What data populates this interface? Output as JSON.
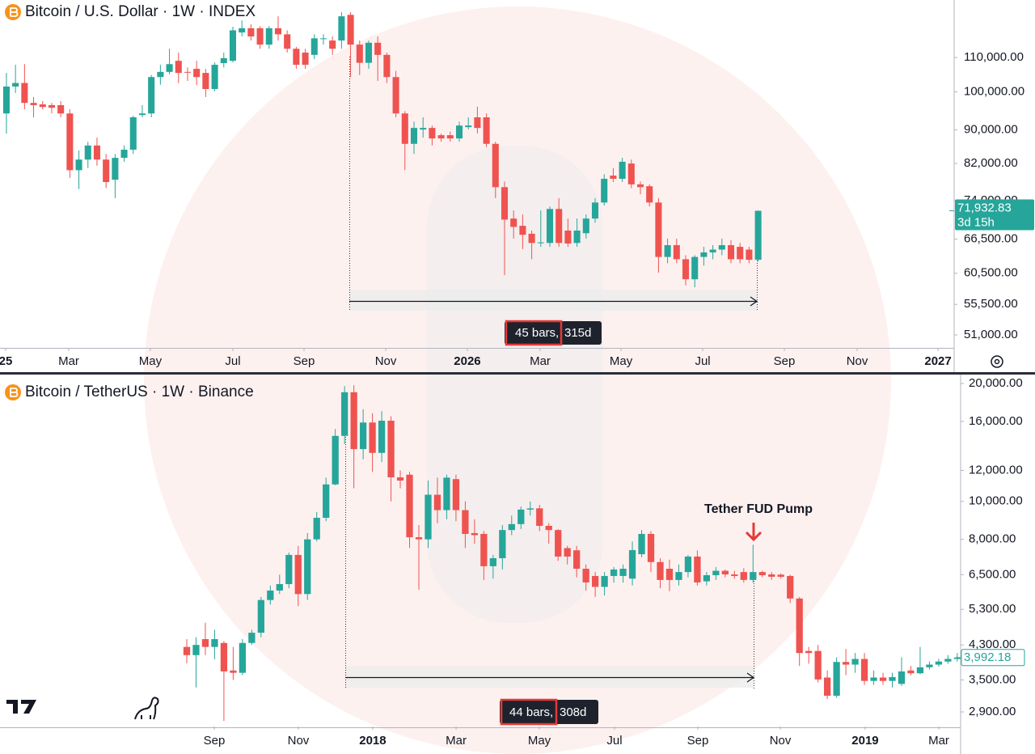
{
  "chart_data": [
    {
      "type": "candlestick",
      "title": "Bitcoin / U.S. Dollar · 1W · INDEX",
      "log_scale": true,
      "up_color": "#26a69a",
      "down_color": "#ef5350",
      "ylim": [
        49200,
        129000
      ],
      "yticks": [
        {
          "value": 51000,
          "label": "51,000.00"
        },
        {
          "value": 55500,
          "label": "55,500.00"
        },
        {
          "value": 60500,
          "label": "60,500.00"
        },
        {
          "value": 66500,
          "label": "66,500.00"
        },
        {
          "value": 74000,
          "label": "74,000.00"
        },
        {
          "value": 82000,
          "label": "82,000.00"
        },
        {
          "value": 90000,
          "label": "90,000.00"
        },
        {
          "value": 100000,
          "label": "100,000.00"
        },
        {
          "value": 110000,
          "label": "110,000.00"
        }
      ],
      "xlim": [
        -0.71,
        104.64
      ],
      "xticks": [
        {
          "value": -0.09,
          "label": "25"
        },
        {
          "value": 6.88,
          "label": "Mar"
        },
        {
          "value": 15.89,
          "label": "May"
        },
        {
          "value": 25,
          "label": "Jul"
        },
        {
          "value": 32.86,
          "label": "Sep"
        },
        {
          "value": 41.88,
          "label": "Nov"
        },
        {
          "value": 50.89,
          "label": "2026"
        },
        {
          "value": 58.93,
          "label": "Mar"
        },
        {
          "value": 67.86,
          "label": "May"
        },
        {
          "value": 76.88,
          "label": "Jul"
        },
        {
          "value": 85.89,
          "label": "Sep"
        },
        {
          "value": 93.93,
          "label": "Nov"
        },
        {
          "value": 102.86,
          "label": "2027"
        }
      ],
      "open": [
        94200,
        101500,
        102500,
        97000,
        96600,
        96400,
        96400,
        94200,
        80500,
        82900,
        86200,
        82900,
        78400,
        83300,
        85200,
        93800,
        94200,
        104200,
        105700,
        109000,
        105700,
        106600,
        105400,
        100800,
        108300,
        109000,
        117900,
        119300,
        119300,
        114000,
        119300,
        117300,
        112700,
        111500,
        110800,
        115800,
        115300,
        115300,
        123800,
        114000,
        108400,
        114600,
        110800,
        104200,
        94200,
        86600,
        90100,
        90500,
        88700,
        88700,
        87900,
        90700,
        93200,
        93200,
        86600,
        76800,
        70400,
        69000,
        67500,
        65800,
        65800,
        72300,
        68100,
        65800,
        67600,
        70400,
        73600,
        79300,
        78600,
        82000,
        77400,
        77000,
        73600,
        63300,
        65400,
        62900,
        59500,
        63300,
        64100,
        64600,
        65400,
        65100,
        64600,
        62800
      ],
      "high": [
        105400,
        107800,
        108000,
        98600,
        97500,
        97000,
        97500,
        95300,
        85000,
        87100,
        88100,
        84200,
        84200,
        86200,
        93600,
        96400,
        104800,
        107800,
        112700,
        111500,
        107000,
        109000,
        106600,
        108500,
        111500,
        119800,
        121900,
        120600,
        120000,
        120000,
        123300,
        118600,
        113300,
        112700,
        117300,
        117300,
        116600,
        124700,
        124700,
        115300,
        115300,
        116600,
        111500,
        106000,
        94800,
        92100,
        93200,
        91100,
        89100,
        89600,
        92100,
        93200,
        96000,
        94200,
        87100,
        78000,
        72000,
        71200,
        68100,
        72000,
        72800,
        74500,
        70400,
        70400,
        71200,
        74500,
        79600,
        81000,
        83300,
        82900,
        78000,
        77400,
        74500,
        66600,
        66600,
        63600,
        63600,
        65100,
        65400,
        66600,
        66300,
        65800,
        65100,
        72000
      ],
      "low": [
        89100,
        99700,
        95300,
        93200,
        95300,
        94200,
        93200,
        78800,
        76400,
        81000,
        81500,
        76600,
        74500,
        82400,
        84200,
        93200,
        93200,
        102000,
        105000,
        102500,
        103100,
        101900,
        98600,
        100200,
        107000,
        108500,
        116600,
        115300,
        112700,
        112700,
        115300,
        111500,
        106600,
        106600,
        109500,
        114000,
        110800,
        112700,
        104200,
        104800,
        106600,
        103100,
        102500,
        93200,
        80500,
        84200,
        88100,
        86200,
        87100,
        87100,
        87100,
        90100,
        89100,
        85800,
        74500,
        60200,
        66600,
        64700,
        62900,
        65100,
        65100,
        65100,
        65100,
        65100,
        66600,
        69600,
        73000,
        77900,
        77900,
        76600,
        75300,
        72800,
        60600,
        62200,
        62200,
        58500,
        58200,
        61800,
        62900,
        63600,
        62200,
        62200,
        62200,
        62500
      ],
      "close": [
        101500,
        102500,
        97000,
        96400,
        95900,
        95700,
        94200,
        80500,
        82900,
        86200,
        82900,
        77900,
        83300,
        85200,
        93200,
        94200,
        104200,
        105700,
        108000,
        105400,
        105500,
        104200,
        100800,
        107800,
        109800,
        118600,
        119300,
        116600,
        114000,
        119300,
        117300,
        112700,
        107800,
        107800,
        116000,
        116000,
        112700,
        123300,
        114000,
        108400,
        114600,
        110800,
        104200,
        94200,
        86600,
        90500,
        90500,
        87900,
        87900,
        87900,
        91100,
        91100,
        90500,
        86600,
        76800,
        70200,
        68800,
        67300,
        65800,
        65900,
        72300,
        65800,
        65700,
        68100,
        70400,
        73600,
        78600,
        78600,
        82400,
        77400,
        76800,
        73600,
        63300,
        65400,
        62900,
        59500,
        63300,
        64100,
        64600,
        65400,
        62900,
        62900,
        62800,
        71932.83
      ],
      "last_price": {
        "value": 71932.83,
        "label": "71,932.83"
      },
      "countdown": "3d 15h",
      "measure": {
        "bars": "45 bars,",
        "days": "315d"
      }
    },
    {
      "type": "candlestick",
      "title": "Bitcoin / TetherUS · 1W · Binance",
      "log_scale": true,
      "up_color": "#26a69a",
      "down_color": "#ef5350",
      "ylim": [
        2662,
        20780
      ],
      "yticks": [
        {
          "value": 2900,
          "label": "2,900.00"
        },
        {
          "value": 3500,
          "label": "3,500.00"
        },
        {
          "value": 4300,
          "label": "4,300.00"
        },
        {
          "value": 5300,
          "label": "5,300.00"
        },
        {
          "value": 6500,
          "label": "6,500.00"
        },
        {
          "value": 8000,
          "label": "8,000.00"
        },
        {
          "value": 10000,
          "label": "10,000.00"
        },
        {
          "value": 12000,
          "label": "12,000.00"
        },
        {
          "value": 16000,
          "label": "16,000.00"
        },
        {
          "value": 20000,
          "label": "20,000.00"
        }
      ],
      "xlim": [
        -20.12,
        83.36
      ],
      "xticks": [
        {
          "value": 2.96,
          "label": "Sep"
        },
        {
          "value": 12.02,
          "label": "Nov"
        },
        {
          "value": 20.03,
          "label": "2018"
        },
        {
          "value": 29.01,
          "label": "Mar"
        },
        {
          "value": 37.98,
          "label": "May"
        },
        {
          "value": 46.08,
          "label": "Jul"
        },
        {
          "value": 55.05,
          "label": "Sep"
        },
        {
          "value": 63.94,
          "label": "Nov"
        },
        {
          "value": 73.08,
          "label": "2019"
        },
        {
          "value": 81.01,
          "label": "Mar"
        }
      ],
      "open": [
        4250,
        4050,
        4450,
        4250,
        4350,
        3700,
        3650,
        4350,
        4620,
        5600,
        5920,
        6150,
        7300,
        5800,
        8000,
        9080,
        11050,
        14700,
        19000,
        13600,
        15900,
        13300,
        16070,
        11520,
        11700,
        8100,
        8000,
        10400,
        9500,
        11400,
        9500,
        8300,
        8260,
        6830,
        7160,
        8450,
        8750,
        9530,
        9600,
        8660,
        8450,
        7600,
        7500,
        6730,
        6450,
        6050,
        6450,
        6450,
        6350,
        7330,
        8260,
        7000,
        6730,
        6300,
        6600,
        7230,
        6250,
        6480,
        6650,
        6510,
        6600,
        6300,
        6600,
        6510,
        6500,
        6450,
        5650,
        4150,
        4150,
        3550,
        3190,
        3890,
        3830,
        3960,
        3480,
        3550,
        3480,
        3420,
        3700,
        3640,
        3770,
        3830,
        3900,
        3960
      ],
      "high": [
        4450,
        4500,
        4900,
        4700,
        4400,
        4250,
        4450,
        4700,
        5700,
        6100,
        6500,
        7400,
        7700,
        8300,
        9400,
        11500,
        15300,
        19700,
        19800,
        17200,
        16800,
        17000,
        16500,
        12000,
        11900,
        8700,
        11300,
        11500,
        11700,
        11700,
        10000,
        9000,
        8400,
        7300,
        8700,
        9200,
        9700,
        9990,
        9800,
        8800,
        8500,
        7700,
        7700,
        6900,
        6600,
        6600,
        6800,
        6900,
        7900,
        8450,
        8400,
        7160,
        7100,
        6900,
        7300,
        7500,
        6600,
        6800,
        6700,
        6650,
        6750,
        7750,
        6650,
        6600,
        6550,
        6500,
        5700,
        4250,
        4300,
        3700,
        4000,
        4200,
        4100,
        4100,
        3700,
        3650,
        3650,
        4000,
        3800,
        4250,
        3900,
        3960,
        4050,
        4100
      ],
      "low": [
        3860,
        3350,
        4050,
        3950,
        2750,
        3500,
        3600,
        4300,
        4500,
        5450,
        5800,
        6000,
        5400,
        5600,
        7900,
        8900,
        11000,
        14000,
        10800,
        12800,
        11900,
        12600,
        10000,
        10800,
        7600,
        5950,
        7600,
        8800,
        9000,
        8900,
        7600,
        7800,
        6300,
        6350,
        6700,
        8200,
        8500,
        9200,
        8400,
        7800,
        7050,
        6900,
        6400,
        5920,
        5700,
        5750,
        6200,
        6200,
        6100,
        7200,
        6600,
        6000,
        5900,
        6100,
        6400,
        6100,
        6100,
        6300,
        6400,
        6350,
        6200,
        6200,
        6400,
        6300,
        6350,
        5500,
        3800,
        3850,
        3450,
        3130,
        3150,
        3600,
        3650,
        3400,
        3400,
        3400,
        3350,
        3380,
        3600,
        3620,
        3720,
        3780,
        3850,
        3900
      ],
      "close": [
        4050,
        4300,
        4250,
        4450,
        3680,
        3650,
        4350,
        4620,
        5600,
        5920,
        6150,
        7300,
        5800,
        8000,
        9080,
        11050,
        14700,
        19000,
        13600,
        15900,
        13300,
        16070,
        11520,
        11300,
        8100,
        8000,
        10400,
        9500,
        11500,
        9500,
        8260,
        8200,
        6830,
        7160,
        8450,
        8750,
        9530,
        9600,
        8660,
        8450,
        7230,
        7230,
        6730,
        6210,
        6050,
        6450,
        6700,
        6730,
        7510,
        8260,
        7000,
        6300,
        6300,
        6600,
        7230,
        6210,
        6480,
        6650,
        6510,
        6450,
        6300,
        6600,
        6480,
        6420,
        6420,
        5650,
        4100,
        4100,
        3510,
        3190,
        3890,
        3830,
        3960,
        3480,
        3550,
        3480,
        3560,
        3680,
        3640,
        3770,
        3830,
        3900,
        3960,
        3992.18
      ],
      "last_price": {
        "value": 3992.18,
        "label": "3,992.18"
      },
      "annotation": "Tether FUD Pump",
      "measure": {
        "bars": "44 bars,",
        "days": "308d"
      }
    }
  ]
}
